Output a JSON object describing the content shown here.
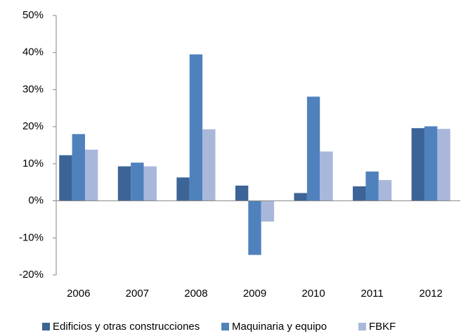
{
  "chart_data": {
    "type": "bar",
    "categories": [
      "2006",
      "2007",
      "2008",
      "2009",
      "2010",
      "2011",
      "2012"
    ],
    "series": [
      {
        "name": "Edificios y otras construcciones",
        "color": "#3C6496",
        "values": [
          12.3,
          9.3,
          6.3,
          4.1,
          2.1,
          3.9,
          19.6
        ]
      },
      {
        "name": "Maquinaria y equipo",
        "color": "#4F81BD",
        "values": [
          18.0,
          10.3,
          39.5,
          -14.6,
          28.1,
          7.9,
          20.1
        ]
      },
      {
        "name": "FBKF",
        "color": "#A9B8DA",
        "values": [
          13.8,
          9.3,
          19.3,
          -5.6,
          13.3,
          5.6,
          19.4
        ]
      }
    ],
    "ylim": [
      -20,
      50
    ],
    "yticks": [
      {
        "value": -20,
        "label": "-20%"
      },
      {
        "value": -10,
        "label": "-10%"
      },
      {
        "value": 0,
        "label": "0%"
      },
      {
        "value": 10,
        "label": "10%"
      },
      {
        "value": 20,
        "label": "20%"
      },
      {
        "value": 30,
        "label": "30%"
      },
      {
        "value": 40,
        "label": "40%"
      },
      {
        "value": 50,
        "label": "50%"
      }
    ],
    "grid": false,
    "legend": "bottom"
  }
}
